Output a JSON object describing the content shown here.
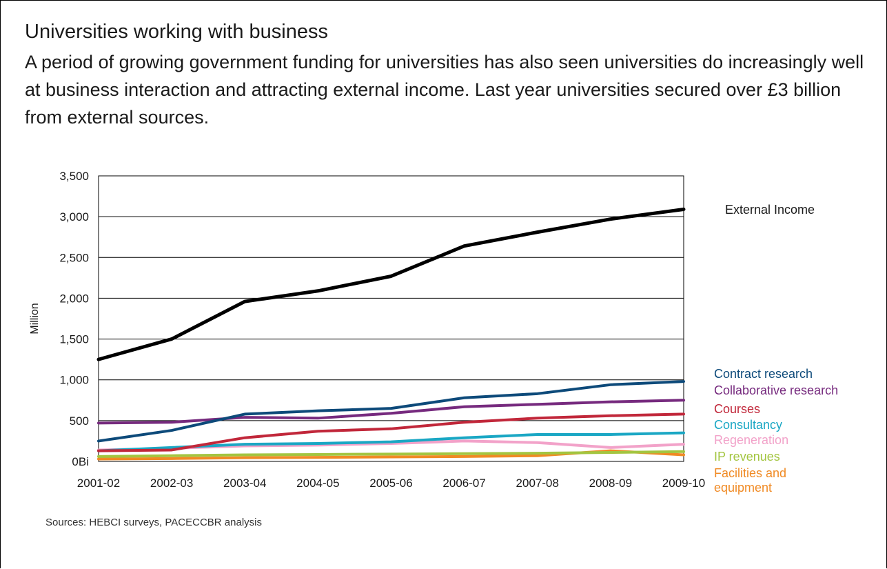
{
  "header": {
    "title": "Universities working with business",
    "intro": "A period of growing government funding for universities has also seen universities do increasingly well at business interaction and attracting external income. Last year universities secured over £3 billion from external sources."
  },
  "footer": {
    "source": "Sources: HEBCI surveys, PACECCBR analysis"
  },
  "chart_data": {
    "type": "line",
    "title": "",
    "xlabel": "",
    "ylabel": "Million",
    "ylim": [
      0,
      3500
    ],
    "yticks": [
      0,
      500,
      1000,
      1500,
      2000,
      2500,
      3000,
      3500
    ],
    "ytick_labels": [
      "0Bi",
      "500",
      "1,000",
      "1,500",
      "2,000",
      "2,500",
      "3,000",
      "3,500"
    ],
    "grid": "horizontal",
    "categories": [
      "2001-02",
      "2002-03",
      "2003-04",
      "2004-05",
      "2005-06",
      "2006-07",
      "2007-08",
      "2008-09",
      "2009-10"
    ],
    "series": [
      {
        "name": "External Income",
        "color": "#000000",
        "label_color": "#1a1a1a",
        "values": [
          1250,
          1500,
          1960,
          2090,
          2270,
          2640,
          2810,
          2970,
          3090
        ]
      },
      {
        "name": "Contract research",
        "color": "#0d4a7a",
        "label_color": "#0d4a7a",
        "values": [
          250,
          380,
          580,
          620,
          650,
          780,
          830,
          940,
          980
        ]
      },
      {
        "name": "Collaborative research",
        "color": "#762a7e",
        "label_color": "#762a7e",
        "values": [
          470,
          480,
          540,
          530,
          590,
          670,
          700,
          730,
          750
        ]
      },
      {
        "name": "Courses",
        "color": "#c1273a",
        "label_color": "#c1273a",
        "values": [
          130,
          140,
          290,
          370,
          400,
          480,
          530,
          560,
          580
        ]
      },
      {
        "name": "Consultancy",
        "color": "#1aa7c4",
        "label_color": "#1aa7c4",
        "values": [
          130,
          170,
          210,
          220,
          240,
          290,
          330,
          330,
          350
        ]
      },
      {
        "name": "Regeneration",
        "color": "#f2a2c9",
        "label_color": "#f2a2c9",
        "values": [
          140,
          160,
          190,
          200,
          220,
          250,
          230,
          170,
          210
        ]
      },
      {
        "name": "IP revenues",
        "color": "#a3c540",
        "label_color": "#a3c540",
        "values": [
          60,
          70,
          80,
          85,
          90,
          95,
          100,
          110,
          120
        ]
      },
      {
        "name": "Facilities and equipment",
        "color": "#f08a24",
        "label_color": "#f08a24",
        "values": [
          30,
          35,
          45,
          50,
          55,
          60,
          70,
          130,
          80
        ]
      }
    ],
    "series_label_lines": {
      "External Income": [
        "External Income"
      ],
      "Contract research": [
        "Contract research"
      ],
      "Collaborative research": [
        "Collaborative research"
      ],
      "Courses": [
        "Courses"
      ],
      "Consultancy": [
        "Consultancy"
      ],
      "Regeneration": [
        "Regeneration"
      ],
      "IP revenues": [
        "IP revenues"
      ],
      "Facilities and equipment": [
        "Facilities and",
        "equipment"
      ]
    }
  }
}
